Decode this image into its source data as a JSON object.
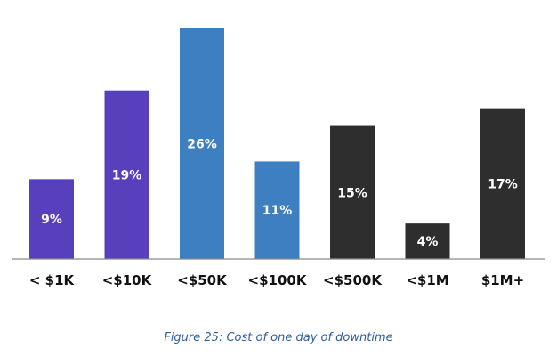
{
  "chart_data": {
    "type": "bar",
    "categories": [
      "< $1K",
      "<$10K",
      "<$50K",
      "<$100K",
      "<$500K",
      "<$1M",
      "$1M+"
    ],
    "values": [
      9,
      19,
      26,
      11,
      15,
      4,
      17
    ],
    "data_labels": [
      "9%",
      "19%",
      "26%",
      "11%",
      "15%",
      "4%",
      "17%"
    ],
    "unit": "%",
    "ylim": [
      0,
      27
    ],
    "grid": false,
    "legend": "none",
    "bar_colors": [
      "#5840bc",
      "#5840bc",
      "#3d7fc0",
      "#3d7fc0",
      "#2e2e2e",
      "#2e2e2e",
      "#2e2e2e"
    ],
    "axis_color": "#8a8a8a",
    "xlabel": "",
    "ylabel": ""
  },
  "caption": "Figure 25: Cost of one day of downtime"
}
